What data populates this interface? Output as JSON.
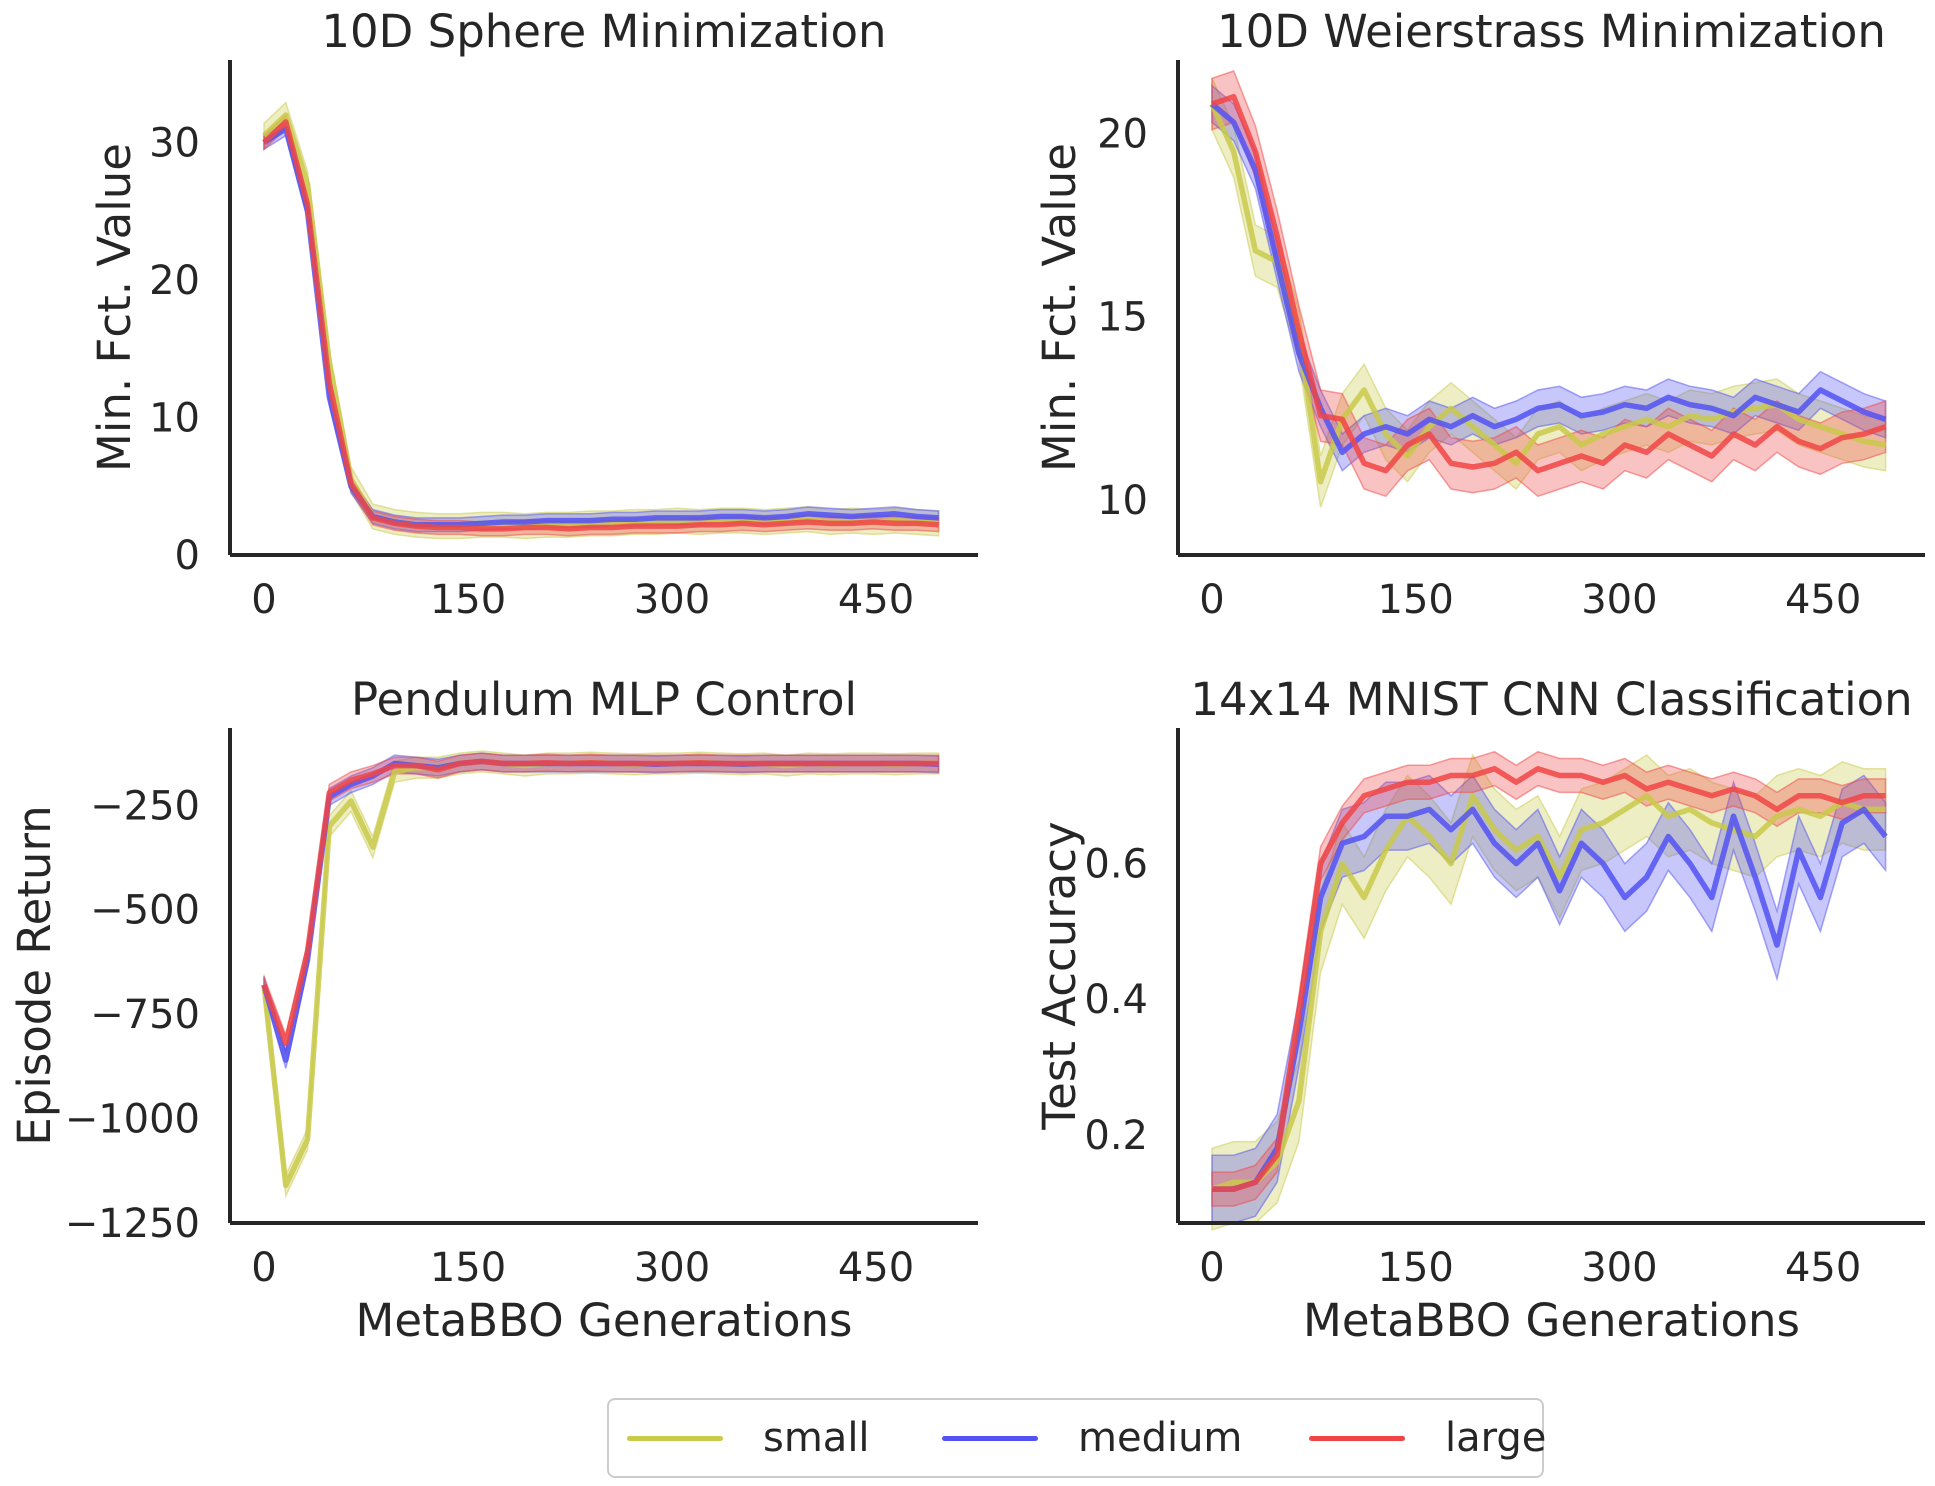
{
  "colors": {
    "small": "#c9c94a",
    "medium": "#5252f2",
    "large": "#f04545",
    "axis": "#262626"
  },
  "legend": [
    {
      "key": "small",
      "label": "small"
    },
    {
      "key": "medium",
      "label": "medium"
    },
    {
      "key": "large",
      "label": "large"
    }
  ],
  "chart_data": [
    {
      "type": "line",
      "title": "10D Sphere Minimization",
      "xlabel": "",
      "ylabel": "Min. Fct. Value",
      "xlim": [
        -25,
        525
      ],
      "ylim": [
        0,
        36
      ],
      "xticks": [
        0,
        150,
        300,
        450
      ],
      "yticks": [
        0,
        10,
        20,
        30
      ],
      "x": [
        0,
        16,
        32,
        48,
        64,
        80,
        96,
        112,
        128,
        144,
        160,
        176,
        192,
        208,
        224,
        240,
        256,
        272,
        288,
        304,
        320,
        336,
        352,
        368,
        384,
        400,
        416,
        432,
        448,
        464,
        480,
        496
      ],
      "series": [
        {
          "name": "small",
          "band": 0.9,
          "values": [
            30.5,
            32.0,
            27.0,
            14.0,
            5.5,
            2.8,
            2.4,
            2.2,
            2.1,
            2.1,
            2.2,
            2.2,
            2.1,
            2.2,
            2.2,
            2.3,
            2.3,
            2.4,
            2.4,
            2.5,
            2.4,
            2.5,
            2.5,
            2.4,
            2.5,
            2.6,
            2.4,
            2.5,
            2.4,
            2.5,
            2.4,
            2.3
          ]
        },
        {
          "name": "medium",
          "band": 0.5,
          "values": [
            30.0,
            31.0,
            25.0,
            11.5,
            5.0,
            2.8,
            2.4,
            2.2,
            2.2,
            2.2,
            2.3,
            2.4,
            2.4,
            2.5,
            2.5,
            2.5,
            2.6,
            2.6,
            2.7,
            2.7,
            2.7,
            2.8,
            2.8,
            2.7,
            2.8,
            3.0,
            2.9,
            2.8,
            2.9,
            3.0,
            2.8,
            2.7
          ]
        },
        {
          "name": "large",
          "band": 0.5,
          "values": [
            30.0,
            31.5,
            25.5,
            12.5,
            5.2,
            2.7,
            2.3,
            2.1,
            2.0,
            2.0,
            1.9,
            1.9,
            2.0,
            2.0,
            1.9,
            2.0,
            2.0,
            2.1,
            2.1,
            2.1,
            2.2,
            2.2,
            2.3,
            2.2,
            2.3,
            2.4,
            2.3,
            2.3,
            2.4,
            2.3,
            2.3,
            2.2
          ]
        }
      ]
    },
    {
      "type": "line",
      "title": "10D Weierstrass Minimization",
      "xlabel": "",
      "ylabel": "Min. Fct. Value",
      "xlim": [
        -25,
        525
      ],
      "ylim": [
        8.5,
        22
      ],
      "xticks": [
        0,
        150,
        300,
        450
      ],
      "yticks": [
        10,
        15,
        20
      ],
      "x": [
        0,
        16,
        32,
        48,
        64,
        80,
        96,
        112,
        128,
        144,
        160,
        176,
        192,
        208,
        224,
        240,
        256,
        272,
        288,
        304,
        320,
        336,
        352,
        368,
        384,
        400,
        416,
        432,
        448,
        464,
        480,
        496
      ],
      "series": [
        {
          "name": "small",
          "band": 0.7,
          "values": [
            20.8,
            19.5,
            16.8,
            16.5,
            14.5,
            10.5,
            12.2,
            13.0,
            11.8,
            11.2,
            12.0,
            12.5,
            12.0,
            11.5,
            11.0,
            11.8,
            12.0,
            11.5,
            11.8,
            12.0,
            12.2,
            12.0,
            12.3,
            12.2,
            12.4,
            12.5,
            12.6,
            12.2,
            12.0,
            11.8,
            11.6,
            11.5
          ]
        },
        {
          "name": "medium",
          "band": 0.5,
          "values": [
            20.8,
            20.3,
            19.0,
            16.5,
            14.0,
            12.5,
            11.3,
            11.8,
            12.0,
            11.8,
            12.2,
            12.0,
            12.3,
            12.0,
            12.2,
            12.5,
            12.6,
            12.3,
            12.4,
            12.6,
            12.5,
            12.8,
            12.6,
            12.5,
            12.3,
            12.8,
            12.6,
            12.4,
            13.0,
            12.7,
            12.4,
            12.2
          ]
        },
        {
          "name": "large",
          "band": 0.7,
          "values": [
            20.8,
            21.0,
            19.5,
            17.2,
            14.6,
            12.3,
            12.2,
            11.0,
            10.8,
            11.5,
            11.8,
            11.0,
            10.9,
            11.0,
            11.3,
            10.8,
            11.0,
            11.2,
            11.0,
            11.5,
            11.3,
            11.8,
            11.5,
            11.2,
            11.8,
            11.5,
            12.0,
            11.6,
            11.4,
            11.7,
            11.8,
            12.0
          ]
        }
      ]
    },
    {
      "type": "line",
      "title": "Pendulum MLP Control",
      "xlabel": "MetaBBO Generations",
      "ylabel": "Episode Return",
      "xlim": [
        -25,
        525
      ],
      "ylim": [
        -1250,
        -65
      ],
      "xticks": [
        0,
        150,
        300,
        450
      ],
      "yticks": [
        -250,
        -500,
        -750,
        -1000,
        -1250
      ],
      "x": [
        0,
        16,
        32,
        48,
        64,
        80,
        96,
        112,
        128,
        144,
        160,
        176,
        192,
        208,
        224,
        240,
        256,
        272,
        288,
        304,
        320,
        336,
        352,
        368,
        384,
        400,
        416,
        432,
        448,
        464,
        480,
        496
      ],
      "series": [
        {
          "name": "small",
          "band": 25,
          "values": [
            -680,
            -1160,
            -1050,
            -300,
            -240,
            -350,
            -170,
            -160,
            -160,
            -150,
            -145,
            -150,
            -155,
            -150,
            -150,
            -148,
            -150,
            -152,
            -150,
            -150,
            -148,
            -150,
            -152,
            -150,
            -155,
            -150,
            -152,
            -150,
            -150,
            -152,
            -150,
            -150
          ]
        },
        {
          "name": "medium",
          "band": 20,
          "values": [
            -680,
            -860,
            -620,
            -230,
            -200,
            -180,
            -150,
            -155,
            -160,
            -150,
            -145,
            -150,
            -150,
            -150,
            -150,
            -150,
            -150,
            -150,
            -152,
            -150,
            -150,
            -150,
            -152,
            -150,
            -150,
            -150,
            -150,
            -150,
            -150,
            -150,
            -150,
            -152
          ]
        },
        {
          "name": "large",
          "band": 20,
          "values": [
            -680,
            -820,
            -600,
            -220,
            -190,
            -175,
            -155,
            -155,
            -165,
            -150,
            -145,
            -150,
            -150,
            -148,
            -150,
            -148,
            -150,
            -150,
            -150,
            -150,
            -148,
            -150,
            -150,
            -150,
            -150,
            -150,
            -150,
            -150,
            -150,
            -150,
            -150,
            -150
          ]
        }
      ]
    },
    {
      "type": "line",
      "title": "14x14 MNIST CNN Classification",
      "xlabel": "MetaBBO Generations",
      "ylabel": "Test Accuracy",
      "xlim": [
        -25,
        525
      ],
      "ylim": [
        0.07,
        0.8
      ],
      "xticks": [
        0,
        150,
        300,
        450
      ],
      "yticks": [
        0.2,
        0.4,
        0.6
      ],
      "x": [
        0,
        16,
        32,
        48,
        64,
        80,
        96,
        112,
        128,
        144,
        160,
        176,
        192,
        208,
        224,
        240,
        256,
        272,
        288,
        304,
        320,
        336,
        352,
        368,
        384,
        400,
        416,
        432,
        448,
        464,
        480,
        496
      ],
      "series": [
        {
          "name": "small",
          "band": 0.06,
          "values": [
            0.12,
            0.13,
            0.13,
            0.16,
            0.25,
            0.5,
            0.6,
            0.55,
            0.62,
            0.67,
            0.64,
            0.6,
            0.7,
            0.65,
            0.62,
            0.64,
            0.58,
            0.65,
            0.66,
            0.68,
            0.7,
            0.67,
            0.68,
            0.66,
            0.65,
            0.64,
            0.67,
            0.68,
            0.67,
            0.69,
            0.68,
            0.68
          ]
        },
        {
          "name": "medium",
          "band": 0.05,
          "values": [
            0.12,
            0.12,
            0.13,
            0.18,
            0.35,
            0.55,
            0.63,
            0.64,
            0.67,
            0.67,
            0.68,
            0.65,
            0.68,
            0.63,
            0.6,
            0.63,
            0.56,
            0.63,
            0.6,
            0.55,
            0.58,
            0.64,
            0.6,
            0.55,
            0.67,
            0.58,
            0.48,
            0.62,
            0.55,
            0.66,
            0.68,
            0.64
          ]
        },
        {
          "name": "large",
          "band": 0.025,
          "values": [
            0.12,
            0.12,
            0.13,
            0.17,
            0.38,
            0.6,
            0.66,
            0.7,
            0.71,
            0.72,
            0.72,
            0.73,
            0.73,
            0.74,
            0.72,
            0.74,
            0.73,
            0.73,
            0.72,
            0.73,
            0.71,
            0.72,
            0.71,
            0.7,
            0.71,
            0.7,
            0.68,
            0.7,
            0.7,
            0.69,
            0.7,
            0.7
          ]
        }
      ]
    }
  ]
}
